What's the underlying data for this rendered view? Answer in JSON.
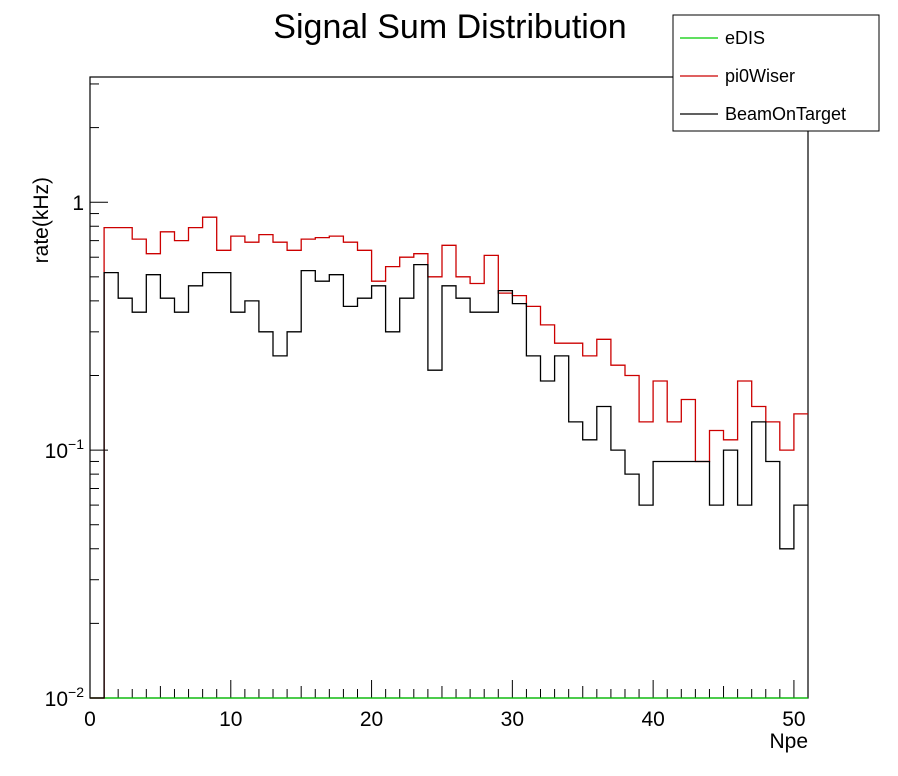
{
  "chart_data": {
    "type": "line",
    "title": "Signal Sum Distribution",
    "xlabel": "Npe",
    "ylabel": "rate(kHz)",
    "xlim": [
      0,
      51
    ],
    "ylim": [
      0.01,
      3.2
    ],
    "yscale": "log",
    "grid": false,
    "legend_placement": "top-right",
    "xticks": [
      0,
      10,
      20,
      30,
      40,
      50
    ],
    "xtick_labels": [
      "0",
      "10",
      "20",
      "30",
      "40",
      "50"
    ],
    "yticks": [
      {
        "value": 1,
        "base": "1",
        "exp": ""
      },
      {
        "value": 0.1,
        "base": "10",
        "exp": "−1"
      },
      {
        "value": 0.01,
        "base": "10",
        "exp": "−2"
      }
    ],
    "bin_edges": [
      0,
      1,
      2,
      3,
      4,
      5,
      6,
      7,
      8,
      9,
      10,
      11,
      12,
      13,
      14,
      15,
      16,
      17,
      18,
      19,
      20,
      21,
      22,
      23,
      24,
      25,
      26,
      27,
      28,
      29,
      30,
      31,
      32,
      33,
      34,
      35,
      36,
      37,
      38,
      39,
      40,
      41,
      42,
      43,
      44,
      45,
      46,
      47,
      48,
      49,
      50,
      51
    ],
    "series": [
      {
        "name": "eDIS",
        "color": "#00cc00",
        "values": [
          0,
          0,
          0,
          0,
          0,
          0,
          0,
          0,
          0,
          0,
          0,
          0,
          0,
          0,
          0,
          0,
          0,
          0,
          0,
          0,
          0,
          0,
          0,
          0,
          0,
          0,
          0,
          0,
          0,
          0,
          0,
          0,
          0,
          0,
          0,
          0,
          0,
          0,
          0,
          0,
          0,
          0,
          0,
          0,
          0,
          0,
          0,
          0,
          0,
          0,
          0
        ]
      },
      {
        "name": "pi0Wiser",
        "color": "#cc0000",
        "values": [
          0.01,
          0.79,
          0.79,
          0.71,
          0.62,
          0.76,
          0.7,
          0.79,
          0.87,
          0.64,
          0.73,
          0.69,
          0.74,
          0.69,
          0.64,
          0.71,
          0.72,
          0.73,
          0.69,
          0.64,
          0.48,
          0.55,
          0.6,
          0.62,
          0.5,
          0.67,
          0.5,
          0.47,
          0.61,
          0.43,
          0.42,
          0.38,
          0.32,
          0.27,
          0.27,
          0.24,
          0.28,
          0.22,
          0.2,
          0.13,
          0.19,
          0.13,
          0.16,
          0.09,
          0.12,
          0.11,
          0.19,
          0.15,
          0.13,
          0.1,
          0.14
        ]
      },
      {
        "name": "BeamOnTarget",
        "color": "#000000",
        "values": [
          0.01,
          0.52,
          0.41,
          0.36,
          0.51,
          0.41,
          0.36,
          0.46,
          0.52,
          0.52,
          0.36,
          0.4,
          0.3,
          0.24,
          0.3,
          0.53,
          0.48,
          0.51,
          0.38,
          0.41,
          0.46,
          0.3,
          0.41,
          0.56,
          0.21,
          0.46,
          0.41,
          0.36,
          0.36,
          0.44,
          0.39,
          0.24,
          0.19,
          0.24,
          0.13,
          0.11,
          0.15,
          0.1,
          0.08,
          0.06,
          0.09,
          0.09,
          0.09,
          0.09,
          0.06,
          0.1,
          0.06,
          0.13,
          0.09,
          0.04,
          0.06
        ]
      }
    ]
  }
}
